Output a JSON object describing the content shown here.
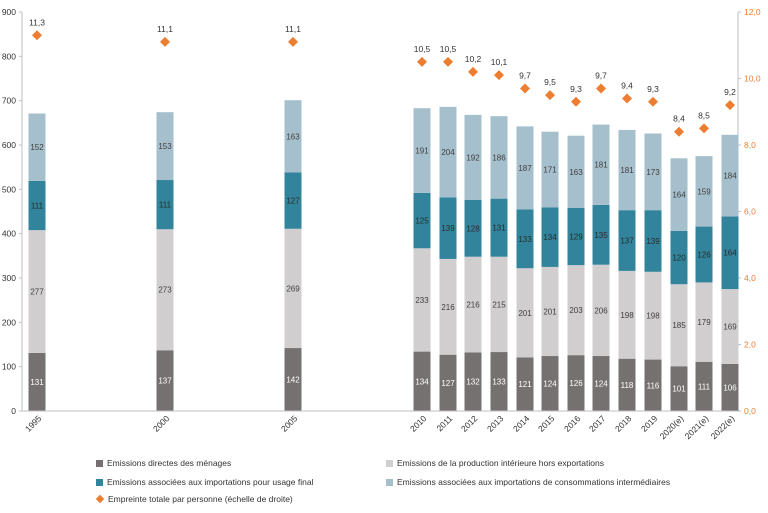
{
  "chart_data": {
    "type": "bar",
    "stacked": true,
    "categories": [
      "1995",
      "2000",
      "2005",
      "2010",
      "2011",
      "2012",
      "2013",
      "2014",
      "2015",
      "2016",
      "2017",
      "2018",
      "2019",
      "2020(e)",
      "2021(e)",
      "2022(e)"
    ],
    "series": [
      {
        "name": "Emissions directes des ménages",
        "color": "#767171",
        "values": [
          131,
          137,
          142,
          134,
          127,
          132,
          133,
          121,
          124,
          126,
          124,
          118,
          116,
          101,
          111,
          106
        ]
      },
      {
        "name": "Emissions de la production intérieure hors exportations",
        "color": "#d0cece",
        "values": [
          277,
          273,
          269,
          233,
          216,
          216,
          215,
          201,
          201,
          203,
          206,
          198,
          198,
          185,
          179,
          169
        ]
      },
      {
        "name": "Emissions associées aux importations pour usage final",
        "color": "#31849b",
        "values": [
          111,
          111,
          127,
          125,
          139,
          128,
          131,
          133,
          134,
          129,
          135,
          137,
          139,
          120,
          126,
          164
        ]
      },
      {
        "name": "Emissions associées aux importations de consommations intermédiaires",
        "color": "#a5bfcc",
        "values": [
          152,
          153,
          163,
          191,
          204,
          192,
          186,
          187,
          171,
          163,
          181,
          181,
          173,
          164,
          159,
          184
        ]
      }
    ],
    "line_series": {
      "name": "Empreinte totale par personne (échelle de droite)",
      "color": "#ed7d31",
      "marker": "diamond",
      "axis": "right",
      "values": [
        11.3,
        11.1,
        11.1,
        10.5,
        10.5,
        10.2,
        10.1,
        9.7,
        9.5,
        9.3,
        9.7,
        9.4,
        9.3,
        8.4,
        8.5,
        9.2
      ],
      "labels": [
        "11,3",
        "11,1",
        "11,1",
        "10,5",
        "10,5",
        "10,2",
        "10,1",
        "9,7",
        "9,5",
        "9,3",
        "9,7",
        "9,4",
        "9,3",
        "8,4",
        "8,5",
        "9,2"
      ]
    },
    "y_left": {
      "ylim": [
        0,
        900
      ],
      "ticks": [
        "0",
        "100",
        "200",
        "300",
        "400",
        "500",
        "600",
        "700",
        "800",
        "900"
      ]
    },
    "y_right": {
      "ylim": [
        0,
        12
      ],
      "ticks": [
        "0,0",
        "2,0",
        "4,0",
        "6,0",
        "8,0",
        "10,0",
        "12,0"
      ],
      "color": "#ed7d31"
    },
    "grid": false,
    "legend_position": "bottom"
  }
}
